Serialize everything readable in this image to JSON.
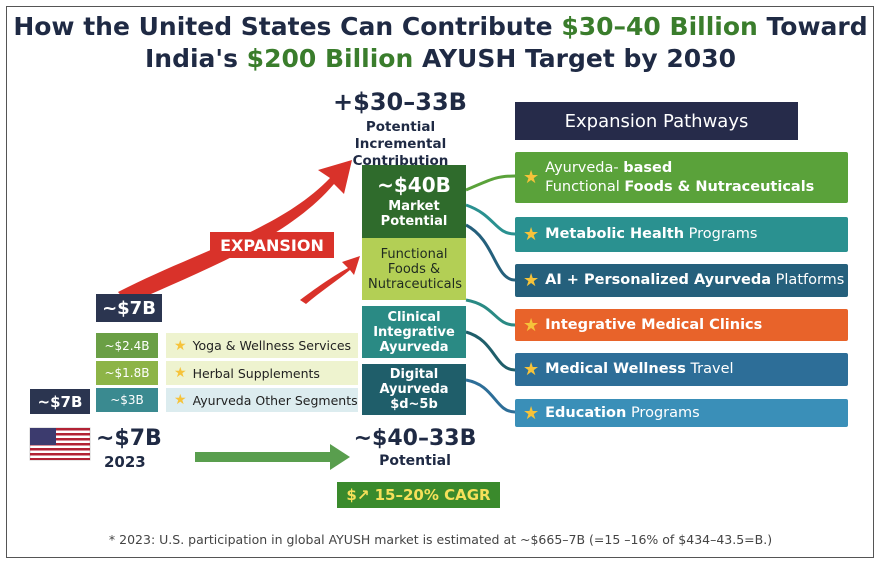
{
  "title": {
    "line1": [
      {
        "text": "How the United States Can Contribute",
        "highlight": false
      },
      {
        "text": "$30–40 Billion",
        "highlight": true
      },
      {
        "text": "Toward",
        "highlight": false
      }
    ],
    "line2": [
      {
        "text": "India's",
        "highlight": false
      },
      {
        "text": "$200 Billion",
        "highlight": true
      },
      {
        "text": "AYUSH Target by 2030",
        "highlight": false
      }
    ]
  },
  "incremental": {
    "value": "+$30–33B",
    "label": "Potential Incremental Contribution"
  },
  "expansion_label": "EXPANSION",
  "current": {
    "total": "~$7B",
    "side_total": "~$7B",
    "segments": [
      {
        "value": "~$2.4B",
        "label": "Yoga & Wellness Services",
        "color": "#6a9f45"
      },
      {
        "value": "~$1.8B",
        "label": "Herbal Supplements",
        "color": "#8db447"
      },
      {
        "value": "~$3B",
        "label": "Ayurveda Other Segments",
        "color": "#3a8a90"
      }
    ],
    "flag_value": "~$7B",
    "year": "2023"
  },
  "potential_blocks": [
    {
      "value": "~$40B",
      "label": "Market Potential",
      "color": "#2f6b2c"
    },
    {
      "label": "Functional Foods & Nutraceuticals",
      "color": "#b3cf55"
    },
    {
      "label": "Clinical Integrative Ayurveda",
      "color": "#2a8a84"
    },
    {
      "label": "Digital Ayurveda",
      "value": "$d~5b",
      "color": "#1f5e6a"
    }
  ],
  "potential": {
    "value": "~$40–33B",
    "label": "Potential",
    "cagr": "$↗ 15–20% CAGR"
  },
  "pathways": {
    "header": "Expansion Pathways",
    "items": [
      {
        "color": "#5aa23a",
        "lines": [
          [
            {
              "text": "Ayurveda-",
              "bold": false
            },
            {
              "text": "based",
              "bold": true
            }
          ],
          [
            {
              "text": "Functional",
              "bold": false
            },
            {
              "text": "Foods & Nutraceuticals",
              "bold": true
            }
          ]
        ]
      },
      {
        "color": "#2a9190",
        "lines": [
          [
            {
              "text": "Metabolic Health",
              "bold": true
            },
            {
              "text": "Programs",
              "bold": false
            }
          ]
        ]
      },
      {
        "color": "#25607c",
        "lines": [
          [
            {
              "text": "AI + Personalized Ayurveda",
              "bold": true
            },
            {
              "text": "Platforms",
              "bold": false
            }
          ]
        ]
      },
      {
        "color": "#e8632a",
        "lines": [
          [
            {
              "text": "Integrative Medical Clinics",
              "bold": true
            }
          ]
        ]
      },
      {
        "color": "#2d6e98",
        "lines": [
          [
            {
              "text": "Medical Wellness",
              "bold": true
            },
            {
              "text": "Travel",
              "bold": false
            }
          ]
        ]
      },
      {
        "color": "#3a8fb8",
        "lines": [
          [
            {
              "text": "Education",
              "bold": true
            },
            {
              "text": "Programs",
              "bold": false
            }
          ]
        ]
      }
    ]
  },
  "footnote": "* 2023: U.S. participation in global AYUSH market is estimated at ~$665–7B (=15 –16% of $434–43.5=B.)"
}
